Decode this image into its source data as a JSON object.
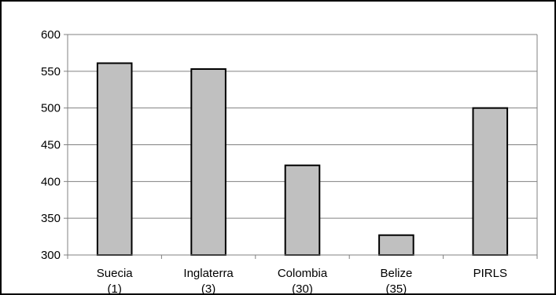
{
  "chart_data": {
    "type": "bar",
    "title": "",
    "xlabel": "",
    "ylabel": "",
    "categories": [
      {
        "name": "Suecia",
        "rank": "(1)"
      },
      {
        "name": "Inglaterra",
        "rank": "(3)"
      },
      {
        "name": "Colombia",
        "rank": "(30)"
      },
      {
        "name": "Belize",
        "rank": "(35)"
      },
      {
        "name": "PIRLS",
        "rank": ""
      }
    ],
    "values": [
      561,
      553,
      422,
      327,
      500
    ],
    "ylim": [
      300,
      600
    ],
    "yticks": [
      300,
      350,
      400,
      450,
      500,
      550,
      600
    ],
    "grid": true,
    "legend": "none",
    "colors": {
      "bar_fill": "#c0c0c0",
      "bar_stroke": "#000000",
      "grid": "#808080",
      "axis": "#808080",
      "background": "#ffffff"
    }
  }
}
